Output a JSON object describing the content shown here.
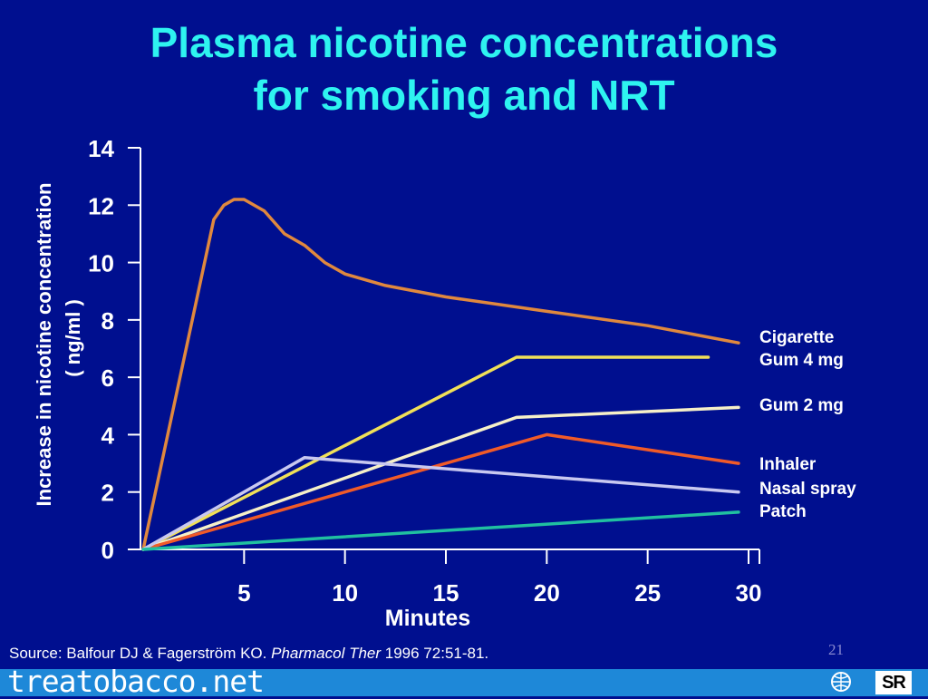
{
  "title_line1": "Plasma nicotine concentrations",
  "title_line2": "for smoking and NRT",
  "source": {
    "prefix": "Source: Balfour DJ & Fagerström KO.  ",
    "journal": "Pharmacol Ther",
    "rest": " 1996 72:51-81."
  },
  "slide_number": "21",
  "footer": {
    "brand": "treatobacco.net",
    "logo_text": "SR"
  },
  "chart_data": {
    "type": "line",
    "xlabel": "Minutes",
    "ylabel_line1": "Increase in nicotine concentration",
    "ylabel_line2": "( ng/ml )",
    "xlim": [
      0,
      30
    ],
    "ylim": [
      0,
      14
    ],
    "xticks": [
      5,
      10,
      15,
      20,
      25,
      30
    ],
    "yticks": [
      0,
      2,
      4,
      6,
      8,
      10,
      12,
      14
    ],
    "grid": false,
    "legend_placement": "right",
    "series": [
      {
        "name": "Cigarette",
        "color": "#e0883e",
        "x": [
          0,
          3.5,
          4,
          4.5,
          5,
          6,
          7,
          8,
          9,
          10,
          12,
          15,
          20,
          25,
          29.5
        ],
        "y": [
          0,
          11.5,
          12,
          12.2,
          12.2,
          11.8,
          11.0,
          10.6,
          10.0,
          9.6,
          9.2,
          8.8,
          8.3,
          7.8,
          7.2
        ]
      },
      {
        "name": "Gum 4 mg",
        "color": "#f0e058",
        "x": [
          0,
          18.5,
          28
        ],
        "y": [
          0,
          6.7,
          6.7
        ]
      },
      {
        "name": "Gum 2 mg",
        "color": "#f6f0c8",
        "x": [
          0,
          18.5,
          29.5
        ],
        "y": [
          0,
          4.6,
          4.95
        ]
      },
      {
        "name": "Inhaler",
        "color": "#f05a28",
        "x": [
          0,
          20,
          29.5
        ],
        "y": [
          0,
          4.0,
          3.0
        ]
      },
      {
        "name": "Nasal spray",
        "color": "#c8c8f0",
        "x": [
          0,
          8,
          29.5
        ],
        "y": [
          0,
          3.2,
          2.0
        ]
      },
      {
        "name": "Patch",
        "color": "#20c0a0",
        "x": [
          0,
          29.5
        ],
        "y": [
          0,
          1.3
        ]
      }
    ]
  }
}
